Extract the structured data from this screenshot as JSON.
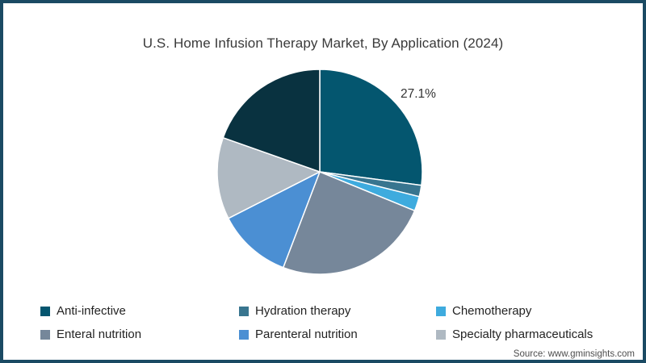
{
  "title": "U.S. Home Infusion Therapy Market, By Application (2024)",
  "source": "Source: www.gminsights.com",
  "border_color": "#1a4a63",
  "chart_data": {
    "type": "pie",
    "title": "U.S. Home Infusion Therapy Market, By Application (2024)",
    "legend_position": "bottom",
    "start_angle_deg": 0,
    "direction": "clockwise",
    "data_label": {
      "text": "27.1%",
      "slice": "Anti-infective"
    },
    "slices": [
      {
        "name": "Anti-infective",
        "value": 27.1,
        "color": "#04566f",
        "in_legend": true
      },
      {
        "name": "Hydration therapy",
        "value": 1.8,
        "color": "#38758f",
        "in_legend": true
      },
      {
        "name": "Chemotherapy",
        "value": 2.3,
        "color": "#3eabde",
        "in_legend": true
      },
      {
        "name": "Enteral nutrition",
        "value": 24.6,
        "color": "#76879a",
        "in_legend": true
      },
      {
        "name": "Parenteral nutrition",
        "value": 11.7,
        "color": "#4b8fd3",
        "in_legend": true
      },
      {
        "name": "Specialty pharmaceuticals",
        "value": 12.9,
        "color": "#afb9c2",
        "in_legend": true
      },
      {
        "name": "",
        "value": 19.6,
        "color": "#093240",
        "in_legend": false
      }
    ]
  }
}
